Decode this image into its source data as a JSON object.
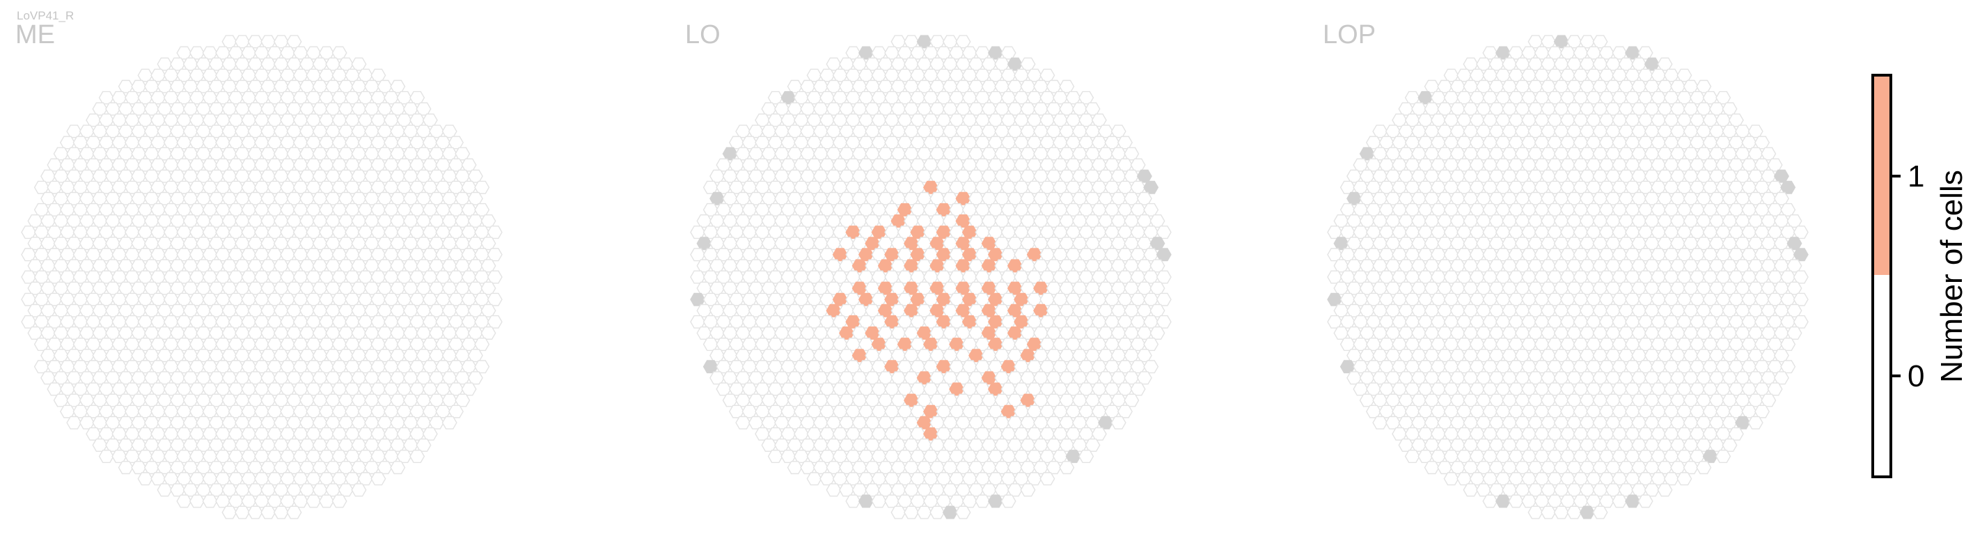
{
  "cell_type": "LoVP41_R",
  "chart_data": {
    "type": "heatmap",
    "panels": [
      {
        "title": "ME",
        "highlighted": [],
        "edge": []
      },
      {
        "title": "LO",
        "highlighted": [
          [
            0,
            1
          ],
          [
            0,
            3
          ],
          [
            0,
            6
          ],
          [
            0,
            12
          ],
          [
            0,
            14
          ],
          [
            0,
            -1
          ],
          [
            0,
            -3
          ],
          [
            0,
            -8
          ],
          [
            1,
            2
          ],
          [
            1,
            4
          ],
          [
            1,
            8
          ],
          [
            1,
            -2
          ],
          [
            1,
            -4
          ],
          [
            1,
            -6
          ],
          [
            2,
            1
          ],
          [
            2,
            3
          ],
          [
            2,
            6
          ],
          [
            2,
            10
          ],
          [
            2,
            -1
          ],
          [
            2,
            -3
          ],
          [
            2,
            -5
          ],
          [
            2,
            -7
          ],
          [
            3,
            2
          ],
          [
            3,
            4
          ],
          [
            3,
            7
          ],
          [
            3,
            -2
          ],
          [
            3,
            -4
          ],
          [
            -1,
            2
          ],
          [
            -1,
            5
          ],
          [
            -1,
            9
          ],
          [
            -1,
            13
          ],
          [
            -1,
            -2
          ],
          [
            -1,
            -4
          ],
          [
            -2,
            1
          ],
          [
            -2,
            3
          ],
          [
            -2,
            6
          ],
          [
            -2,
            11
          ],
          [
            -2,
            -1
          ],
          [
            -2,
            -3
          ],
          [
            -2,
            -6
          ],
          [
            -3,
            2
          ],
          [
            -3,
            4
          ],
          [
            -3,
            8
          ],
          [
            -3,
            -2
          ],
          [
            -3,
            -5
          ],
          [
            -4,
            1
          ],
          [
            -4,
            3
          ],
          [
            -4,
            6
          ],
          [
            -4,
            -1
          ],
          [
            -4,
            -4
          ],
          [
            -5,
            2
          ],
          [
            -5,
            5
          ],
          [
            -5,
            -2
          ],
          [
            -5,
            -3
          ],
          [
            -6,
            1
          ],
          [
            -6,
            4
          ],
          [
            -6,
            7
          ],
          [
            -6,
            -1
          ],
          [
            -6,
            -4
          ],
          [
            4,
            1
          ],
          [
            4,
            3
          ],
          [
            4,
            5
          ],
          [
            4,
            -1
          ],
          [
            4,
            -3
          ],
          [
            4,
            9
          ],
          [
            5,
            2
          ],
          [
            5,
            4
          ],
          [
            5,
            6
          ],
          [
            5,
            10
          ],
          [
            5,
            -2
          ],
          [
            6,
            1
          ],
          [
            6,
            3
          ],
          [
            6,
            5
          ],
          [
            6,
            8
          ],
          [
            6,
            12
          ],
          [
            6,
            -1
          ],
          [
            7,
            2
          ],
          [
            7,
            4
          ],
          [
            7,
            7
          ],
          [
            7,
            11
          ],
          [
            8,
            1
          ],
          [
            8,
            3
          ],
          [
            8,
            6
          ],
          [
            8,
            -2
          ],
          [
            -7,
            2
          ],
          [
            -7,
            5
          ],
          [
            -7,
            -2
          ],
          [
            -8,
            3
          ]
        ],
        "edge": "rim"
      },
      {
        "title": "LOP",
        "highlighted": [],
        "edge": "rim"
      }
    ],
    "colorbar": {
      "label": "Number of cells",
      "ticks": [
        0,
        1
      ],
      "range": [
        -0.5,
        1.5
      ],
      "colors": {
        "0": "#ffffff",
        "1": "#f8ad90"
      }
    },
    "colors": {
      "column_outline": "#e3e3e3",
      "edge_column": "#d2d2d2",
      "highlight": "#f8ad90",
      "title": "#c8c8c8"
    }
  }
}
